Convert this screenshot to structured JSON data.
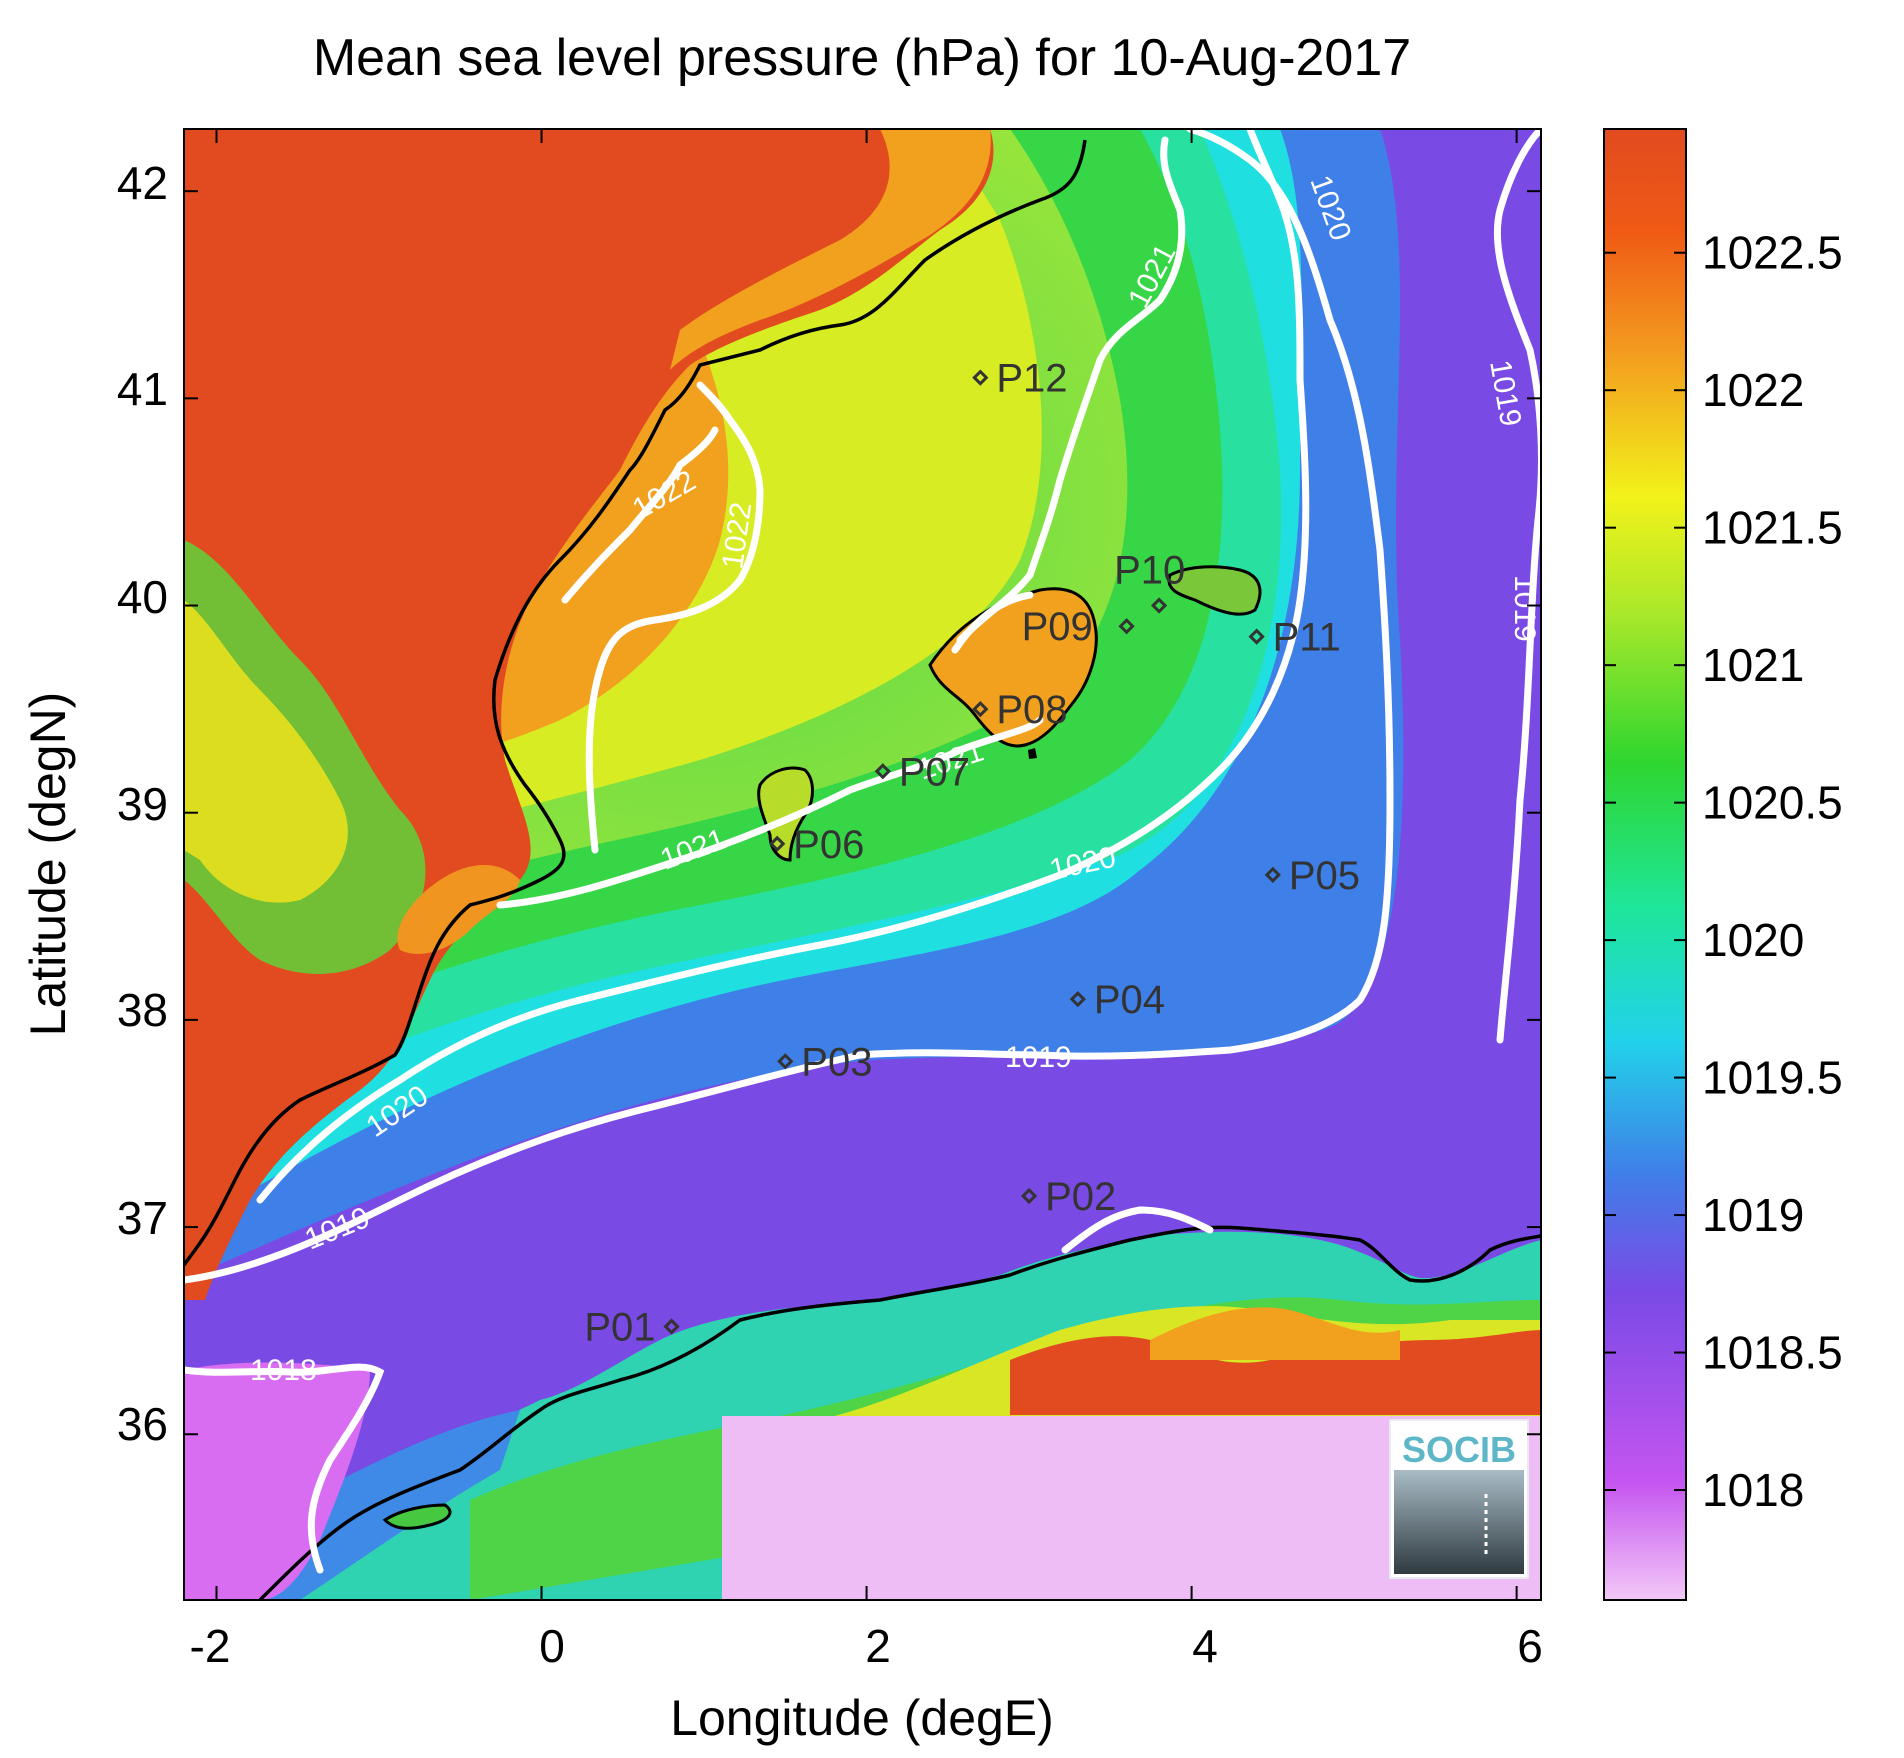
{
  "title": "Mean sea level pressure (hPa) for 10-Aug-2017",
  "xlabel": "Longitude (degE)",
  "ylabel": "Latitude (degN)",
  "x_ticks": [
    "-2",
    "0",
    "2",
    "4",
    "6"
  ],
  "y_ticks": [
    "36",
    "37",
    "38",
    "39",
    "40",
    "41",
    "42"
  ],
  "colorbar": {
    "labels": [
      "1018",
      "1018.5",
      "1019",
      "1019.5",
      "1020",
      "1020.5",
      "1021",
      "1021.5",
      "1022",
      "1022.5"
    ],
    "range": [
      1017.6,
      1022.95
    ]
  },
  "contours": {
    "labels": [
      "1018",
      "1019",
      "1019",
      "1019",
      "1019",
      "1020",
      "1020",
      "1020",
      "1021",
      "1021",
      "1021",
      "1022",
      "1022"
    ]
  },
  "stations": [
    {
      "name": "P01",
      "lon": 0.8,
      "lat": 36.52
    },
    {
      "name": "P02",
      "lon": 3.0,
      "lat": 37.15
    },
    {
      "name": "P03",
      "lon": 1.5,
      "lat": 37.8
    },
    {
      "name": "P04",
      "lon": 3.3,
      "lat": 38.1
    },
    {
      "name": "P05",
      "lon": 4.5,
      "lat": 38.7
    },
    {
      "name": "P06",
      "lon": 1.45,
      "lat": 38.85
    },
    {
      "name": "P07",
      "lon": 2.1,
      "lat": 39.2
    },
    {
      "name": "P08",
      "lon": 2.7,
      "lat": 39.5
    },
    {
      "name": "P09",
      "lon": 3.6,
      "lat": 39.9
    },
    {
      "name": "P10",
      "lon": 3.8,
      "lat": 40.0
    },
    {
      "name": "P11",
      "lon": 4.4,
      "lat": 39.85
    },
    {
      "name": "P12",
      "lon": 2.7,
      "lat": 41.1
    }
  ],
  "logo": {
    "text": "SOCIB"
  },
  "colors": {
    "orange_red": "#e14b1f",
    "orange": "#f19521",
    "yellow": "#f2f21a",
    "green": "#35d435",
    "cyan": "#20e6d0",
    "blue": "#3f7fe8",
    "purple": "#7a4ae4",
    "magenta": "#c255f0",
    "pink": "#efbdf5"
  }
}
